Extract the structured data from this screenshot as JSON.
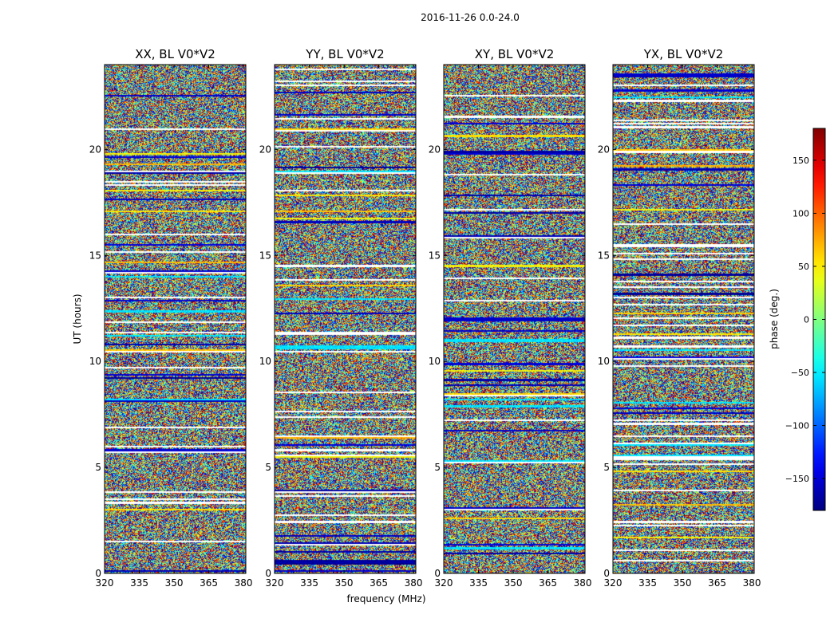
{
  "chart_data": {
    "type": "heatmap",
    "title": "2016-11-26 0.0-24.0",
    "xlabel": "frequency (MHz)",
    "ylabel": "UT (hours)",
    "xlim": [
      320,
      381
    ],
    "ylim": [
      0,
      24
    ],
    "x_ticks": [
      "320",
      "335",
      "350",
      "365",
      "380"
    ],
    "x_tick_values": [
      320,
      335,
      350,
      365,
      380
    ],
    "y_ticks": [
      "0",
      "5",
      "10",
      "15",
      "20"
    ],
    "y_tick_values": [
      0,
      5,
      10,
      15,
      20
    ],
    "panels": [
      {
        "title": "XX, BL V0*V2",
        "pol": "XX"
      },
      {
        "title": "YY, BL V0*V2",
        "pol": "YY"
      },
      {
        "title": "XY, BL V0*V2",
        "pol": "XY"
      },
      {
        "title": "YX, BL V0*V2",
        "pol": "YX"
      }
    ],
    "colorbar": {
      "label": "phase (deg.)",
      "range": [
        -180,
        180
      ],
      "ticks": [
        "−150",
        "−100",
        "−50",
        "0",
        "50",
        "100",
        "150"
      ],
      "tick_values": [
        -150,
        -100,
        -50,
        0,
        50,
        100,
        150
      ],
      "colormap": "jet"
    },
    "values_note": "Noisy phase values across frequency/time; horizontal bands are flagged (white) or coherent-phase time ranges."
  }
}
